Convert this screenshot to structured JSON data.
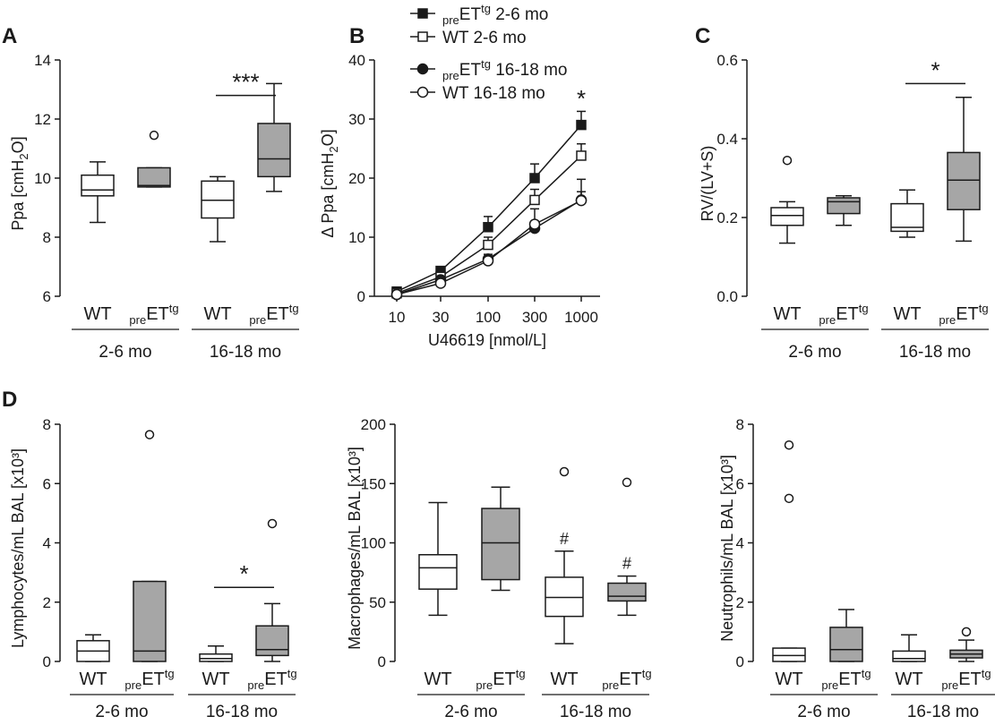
{
  "chart_data": [
    {
      "panel": "A",
      "type": "box",
      "ylabel": "Ppa [cmH2O]",
      "ylim": [
        6,
        14
      ],
      "yticks": [
        6,
        8,
        10,
        12,
        14
      ],
      "groups": [
        "2-6 mo",
        "16-18 mo"
      ],
      "categories": [
        {
          "main": "WT",
          "pre": "",
          "sup": ""
        },
        {
          "main": "ET",
          "pre": "pre",
          "sup": "tg"
        },
        {
          "main": "WT",
          "pre": "",
          "sup": ""
        },
        {
          "main": "ET",
          "pre": "pre",
          "sup": "tg"
        }
      ],
      "boxes": [
        {
          "min": 8.5,
          "q1": 9.4,
          "median": 9.6,
          "q3": 10.1,
          "max": 10.55,
          "outliers": [],
          "fill": "#ffffff"
        },
        {
          "min": 9.7,
          "q1": 9.7,
          "median": 9.75,
          "q3": 10.35,
          "max": 10.35,
          "outliers": [
            11.45
          ],
          "fill": "#a6a6a6"
        },
        {
          "min": 7.85,
          "q1": 8.65,
          "median": 9.25,
          "q3": 9.9,
          "max": 10.05,
          "outliers": [],
          "fill": "#ffffff"
        },
        {
          "min": 9.55,
          "q1": 10.05,
          "median": 10.65,
          "q3": 11.85,
          "max": 13.2,
          "outliers": [],
          "fill": "#a6a6a6"
        }
      ],
      "brackets": [
        {
          "from": 2,
          "to": 3,
          "y": 12.8,
          "label": "***"
        }
      ]
    },
    {
      "panel": "B",
      "type": "line",
      "ylabel": "Δ Ppa [cmH2O]",
      "xlabel": "U46619 [nmol/L]",
      "ylim": [
        0,
        40
      ],
      "yticks": [
        0,
        10,
        20,
        30,
        40
      ],
      "x": [
        "10",
        "30",
        "100",
        "300",
        "1000"
      ],
      "series": [
        {
          "pre": "pre",
          "main": "ET",
          "sup": "tg",
          "rest": " 2-6 mo",
          "marker": "square",
          "filled": true,
          "values": [
            0.8,
            4.3,
            11.7,
            20.0,
            29.0
          ],
          "errors": [
            0.4,
            0.6,
            1.8,
            2.4,
            2.3
          ]
        },
        {
          "pre": "",
          "main": "WT",
          "sup": "",
          "rest": " 2-6 mo",
          "marker": "square",
          "filled": false,
          "values": [
            0.5,
            3.3,
            8.7,
            16.3,
            23.8
          ],
          "errors": [
            0.3,
            0.5,
            1.3,
            1.8,
            2.0
          ]
        },
        {
          "pre": "pre",
          "main": "ET",
          "sup": "tg",
          "rest": " 16-18 mo",
          "marker": "circle",
          "filled": true,
          "values": [
            0.3,
            2.8,
            6.3,
            11.5,
            16.3
          ],
          "errors": [
            0.3,
            0.4,
            0.8,
            1.2,
            3.5
          ]
        },
        {
          "pre": "",
          "main": "WT",
          "sup": "",
          "rest": " 16-18 mo",
          "marker": "circle",
          "filled": false,
          "values": [
            0.3,
            2.2,
            6.0,
            12.2,
            16.2
          ],
          "errors": [
            0.3,
            0.4,
            0.7,
            2.6,
            1.5
          ]
        }
      ],
      "annotations": [
        {
          "x": "1000",
          "y": 33,
          "label": "*"
        }
      ]
    },
    {
      "panel": "C",
      "type": "box",
      "ylabel": "RV/(LV+S)",
      "ylim": [
        0.0,
        0.6
      ],
      "yticks": [
        "0.0",
        "0.2",
        "0.4",
        "0.6"
      ],
      "groups": [
        "2-6 mo",
        "16-18 mo"
      ],
      "categories": [
        {
          "main": "WT",
          "pre": "",
          "sup": ""
        },
        {
          "main": "ET",
          "pre": "pre",
          "sup": "tg"
        },
        {
          "main": "WT",
          "pre": "",
          "sup": ""
        },
        {
          "main": "ET",
          "pre": "pre",
          "sup": "tg"
        }
      ],
      "boxes": [
        {
          "min": 0.135,
          "q1": 0.18,
          "median": 0.205,
          "q3": 0.225,
          "max": 0.24,
          "outliers": [
            0.345
          ],
          "fill": "#ffffff"
        },
        {
          "min": 0.18,
          "q1": 0.21,
          "median": 0.24,
          "q3": 0.25,
          "max": 0.255,
          "outliers": [],
          "fill": "#a6a6a6"
        },
        {
          "min": 0.15,
          "q1": 0.165,
          "median": 0.175,
          "q3": 0.235,
          "max": 0.27,
          "outliers": [],
          "fill": "#ffffff"
        },
        {
          "min": 0.14,
          "q1": 0.22,
          "median": 0.295,
          "q3": 0.365,
          "max": 0.505,
          "outliers": [],
          "fill": "#a6a6a6"
        }
      ],
      "brackets": [
        {
          "from": 2,
          "to": 3,
          "y": 0.54,
          "label": "*"
        }
      ]
    },
    {
      "panel": "D",
      "type": "box",
      "ylabel": "Lymphocytes/mL BAL [x10³]",
      "ylim": [
        0,
        8
      ],
      "yticks": [
        0,
        2,
        4,
        6,
        8
      ],
      "groups": [
        "2-6 mo",
        "16-18 mo"
      ],
      "categories": [
        {
          "main": "WT",
          "pre": "",
          "sup": ""
        },
        {
          "main": "ET",
          "pre": "pre",
          "sup": "tg"
        },
        {
          "main": "WT",
          "pre": "",
          "sup": ""
        },
        {
          "main": "ET",
          "pre": "pre",
          "sup": "tg"
        }
      ],
      "boxes": [
        {
          "min": 0.0,
          "q1": 0.0,
          "median": 0.35,
          "q3": 0.7,
          "max": 0.9,
          "outliers": [],
          "fill": "#ffffff"
        },
        {
          "min": 0.0,
          "q1": 0.0,
          "median": 0.35,
          "q3": 2.7,
          "max": 2.7,
          "outliers": [
            7.65
          ],
          "fill": "#a6a6a6"
        },
        {
          "min": 0.0,
          "q1": 0.0,
          "median": 0.1,
          "q3": 0.25,
          "max": 0.52,
          "outliers": [],
          "fill": "#ffffff"
        },
        {
          "min": 0.0,
          "q1": 0.2,
          "median": 0.4,
          "q3": 1.2,
          "max": 1.95,
          "outliers": [
            4.65
          ],
          "fill": "#a6a6a6"
        }
      ],
      "brackets": [
        {
          "from": 2,
          "to": 3,
          "y": 2.5,
          "label": "*"
        }
      ]
    },
    {
      "panel": "",
      "type": "box",
      "ylabel": "Macrophages/mL BAL [x10³]",
      "ylim": [
        0,
        200
      ],
      "yticks": [
        0,
        50,
        100,
        150,
        200
      ],
      "groups": [
        "2-6 mo",
        "16-18 mo"
      ],
      "categories": [
        {
          "main": "WT",
          "pre": "",
          "sup": ""
        },
        {
          "main": "ET",
          "pre": "pre",
          "sup": "tg"
        },
        {
          "main": "WT",
          "pre": "",
          "sup": ""
        },
        {
          "main": "ET",
          "pre": "pre",
          "sup": "tg"
        }
      ],
      "boxes": [
        {
          "min": 39,
          "q1": 61,
          "median": 79,
          "q3": 90,
          "max": 134,
          "outliers": [],
          "fill": "#ffffff"
        },
        {
          "min": 60,
          "q1": 69,
          "median": 100,
          "q3": 129,
          "max": 147,
          "outliers": [],
          "fill": "#a6a6a6"
        },
        {
          "min": 15,
          "q1": 38,
          "median": 54,
          "q3": 71,
          "max": 93,
          "outliers": [
            160
          ],
          "fill": "#ffffff",
          "mark": "#"
        },
        {
          "min": 39,
          "q1": 51,
          "median": 55,
          "q3": 66,
          "max": 72,
          "outliers": [
            151
          ],
          "fill": "#a6a6a6",
          "mark": "#"
        }
      ],
      "brackets": []
    },
    {
      "panel": "",
      "type": "box",
      "ylabel": "Neutrophils/mL BAL [x10³]",
      "ylim": [
        0,
        8
      ],
      "yticks": [
        0,
        2,
        4,
        6,
        8
      ],
      "groups": [
        "2-6 mo",
        "16-18 mo"
      ],
      "categories": [
        {
          "main": "WT",
          "pre": "",
          "sup": ""
        },
        {
          "main": "ET",
          "pre": "pre",
          "sup": "tg"
        },
        {
          "main": "WT",
          "pre": "",
          "sup": ""
        },
        {
          "main": "ET",
          "pre": "pre",
          "sup": "tg"
        }
      ],
      "boxes": [
        {
          "min": 0.0,
          "q1": 0.0,
          "median": 0.2,
          "q3": 0.45,
          "max": 0.45,
          "outliers": [
            5.5,
            7.3
          ],
          "fill": "#ffffff"
        },
        {
          "min": 0.0,
          "q1": 0.0,
          "median": 0.4,
          "q3": 1.15,
          "max": 1.75,
          "outliers": [],
          "fill": "#a6a6a6"
        },
        {
          "min": 0.0,
          "q1": 0.0,
          "median": 0.1,
          "q3": 0.35,
          "max": 0.9,
          "outliers": [],
          "fill": "#ffffff"
        },
        {
          "min": 0.0,
          "q1": 0.12,
          "median": 0.25,
          "q3": 0.38,
          "max": 0.72,
          "outliers": [
            1.0
          ],
          "fill": "#a6a6a6"
        }
      ],
      "brackets": []
    }
  ]
}
